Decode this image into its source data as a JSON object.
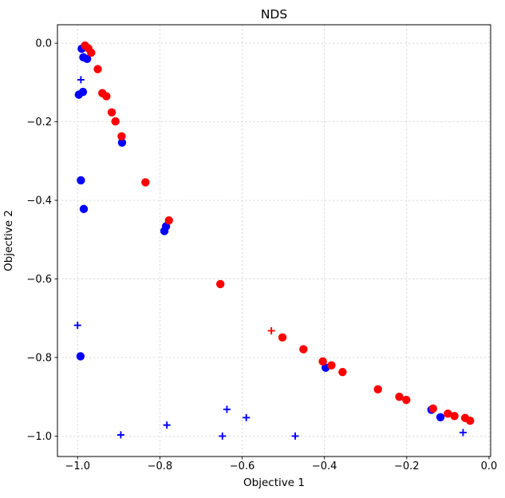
{
  "figure": {
    "title": "NDS",
    "xlabel": "Objective 1",
    "ylabel": "Objective 2"
  },
  "chart_data": {
    "type": "scatter",
    "title": "NDS",
    "xlabel": "Objective 1",
    "ylabel": "Objective 2",
    "xlim": [
      -1.049,
      0.004
    ],
    "ylim": [
      -1.052,
      0.047
    ],
    "xticks": [
      -1.0,
      -0.8,
      -0.6,
      -0.4,
      -0.2,
      0.0
    ],
    "yticks": [
      -1.0,
      -0.8,
      -0.6,
      -0.4,
      -0.2,
      0.0
    ],
    "grid": true,
    "legend_position": "none",
    "colors": {
      "red": "#ff0000",
      "blue": "#0000ff"
    },
    "series": [
      {
        "name": "blue-circles",
        "marker": "circle",
        "color": "#0000ff",
        "points": [
          [
            -0.99,
            -0.014
          ],
          [
            -0.986,
            -0.036
          ],
          [
            -0.977,
            -0.04
          ],
          [
            -0.997,
            -0.131
          ],
          [
            -0.987,
            -0.124
          ],
          [
            -0.992,
            -0.349
          ],
          [
            -0.985,
            -0.422
          ],
          [
            -0.993,
            -0.797
          ],
          [
            -0.892,
            -0.253
          ],
          [
            -0.785,
            -0.466
          ],
          [
            -0.789,
            -0.478
          ],
          [
            -0.397,
            -0.826
          ],
          [
            -0.14,
            -0.933
          ],
          [
            -0.118,
            -0.952
          ]
        ]
      },
      {
        "name": "red-circles",
        "marker": "circle",
        "color": "#ff0000",
        "points": [
          [
            -0.982,
            -0.006
          ],
          [
            -0.974,
            -0.013
          ],
          [
            -0.967,
            -0.024
          ],
          [
            -0.951,
            -0.066
          ],
          [
            -0.94,
            -0.127
          ],
          [
            -0.93,
            -0.135
          ],
          [
            -0.917,
            -0.176
          ],
          [
            -0.908,
            -0.199
          ],
          [
            -0.893,
            -0.237
          ],
          [
            -0.835,
            -0.354
          ],
          [
            -0.778,
            -0.451
          ],
          [
            -0.653,
            -0.613
          ],
          [
            -0.502,
            -0.749
          ],
          [
            -0.451,
            -0.779
          ],
          [
            -0.404,
            -0.81
          ],
          [
            -0.383,
            -0.82
          ],
          [
            -0.356,
            -0.837
          ],
          [
            -0.27,
            -0.881
          ],
          [
            -0.218,
            -0.9
          ],
          [
            -0.201,
            -0.908
          ],
          [
            -0.136,
            -0.93
          ],
          [
            -0.1,
            -0.943
          ],
          [
            -0.084,
            -0.949
          ],
          [
            -0.058,
            -0.954
          ],
          [
            -0.046,
            -0.961
          ]
        ]
      },
      {
        "name": "blue-plus",
        "marker": "plus",
        "color": "#0000ff",
        "points": [
          [
            -0.992,
            -0.093
          ],
          [
            -1.0,
            -0.718
          ],
          [
            -0.895,
            -0.997
          ],
          [
            -0.783,
            -0.972
          ],
          [
            -0.648,
            -1.0
          ],
          [
            -0.637,
            -0.932
          ],
          [
            -0.59,
            -0.953
          ],
          [
            -0.471,
            -1.0
          ],
          [
            -0.063,
            -0.991
          ]
        ]
      },
      {
        "name": "red-plus",
        "marker": "plus",
        "color": "#ff0000",
        "points": [
          [
            -0.529,
            -0.732
          ]
        ]
      }
    ]
  }
}
